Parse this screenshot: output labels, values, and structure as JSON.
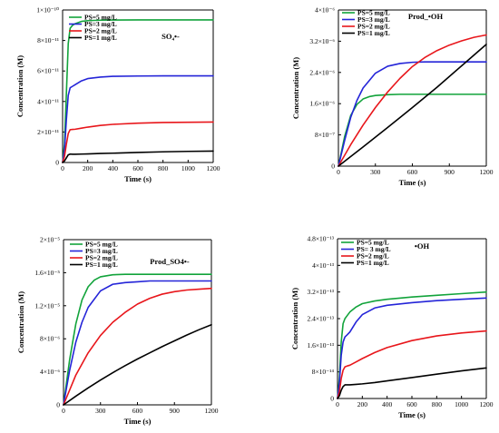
{
  "chart_data": [
    {
      "type": "line",
      "title": "SO₄•-",
      "xlabel": "Time (s)",
      "ylabel": "Concentration (M)",
      "xlim": [
        0,
        1200
      ],
      "ylim": [
        0,
        1e-10
      ],
      "xticks": [
        0,
        200,
        400,
        600,
        800,
        1000,
        1200
      ],
      "xtick_labels": [
        "0",
        "200",
        "400",
        "600",
        "800",
        "1000",
        "1200"
      ],
      "yticks": [
        0,
        2e-11,
        4e-11,
        6e-11,
        8e-11,
        1e-10
      ],
      "ytick_labels": [
        "0",
        "2×10⁻¹¹",
        "4×10⁻¹¹",
        "6×10⁻¹¹",
        "8×10⁻¹¹",
        "1×10⁻¹⁰"
      ],
      "legend": "top-left",
      "series": [
        {
          "name": "PS=5 mg/L",
          "color": "#12a33b",
          "x": [
            0,
            15,
            30,
            45,
            60,
            80,
            100,
            150,
            200,
            300,
            400,
            600,
            800,
            1000,
            1200
          ],
          "values": [
            0,
            1.2e-11,
            4.5e-11,
            7.8e-11,
            8.8e-11,
            9e-11,
            9.1e-11,
            9.25e-11,
            9.3e-11,
            9.33e-11,
            9.34e-11,
            9.35e-11,
            9.35e-11,
            9.35e-11,
            9.35e-11
          ]
        },
        {
          "name": "PS=3 mg/L",
          "color": "#2424d8",
          "x": [
            0,
            15,
            30,
            45,
            60,
            80,
            100,
            150,
            200,
            300,
            400,
            600,
            800,
            1000,
            1200
          ],
          "values": [
            0,
            8e-12,
            2.8e-11,
            4.4e-11,
            4.9e-11,
            5e-11,
            5.1e-11,
            5.35e-11,
            5.5e-11,
            5.6e-11,
            5.65e-11,
            5.67e-11,
            5.68e-11,
            5.68e-11,
            5.68e-11
          ]
        },
        {
          "name": "PS=2 mg/L",
          "color": "#e8161b",
          "x": [
            0,
            15,
            30,
            45,
            60,
            80,
            100,
            150,
            200,
            300,
            400,
            600,
            800,
            1000,
            1200
          ],
          "values": [
            0,
            4e-12,
            1.2e-11,
            1.9e-11,
            2.15e-11,
            2.17e-11,
            2.18e-11,
            2.25e-11,
            2.32e-11,
            2.43e-11,
            2.5e-11,
            2.58e-11,
            2.62e-11,
            2.64e-11,
            2.65e-11
          ]
        },
        {
          "name": "PS=1 mg/L",
          "color": "#000000",
          "x": [
            0,
            15,
            30,
            45,
            60,
            80,
            100,
            150,
            200,
            300,
            400,
            600,
            800,
            1000,
            1200
          ],
          "values": [
            0,
            1e-12,
            3e-12,
            5e-12,
            5.5e-12,
            5.4e-12,
            5.4e-12,
            5.5e-12,
            5.6e-12,
            5.9e-12,
            6.1e-12,
            6.6e-12,
            7e-12,
            7.3e-12,
            7.5e-12
          ]
        }
      ]
    },
    {
      "type": "line",
      "title": "Prod_•OH",
      "xlabel": "Time (s)",
      "ylabel": "Concentration (M)",
      "xlim": [
        0,
        1200
      ],
      "ylim": [
        0,
        4e-06
      ],
      "xticks": [
        0,
        300,
        600,
        900,
        1200
      ],
      "xtick_labels": [
        "0",
        "300",
        "600",
        "900",
        "1200"
      ],
      "yticks": [
        0,
        8e-07,
        1.6e-06,
        2.4e-06,
        3.2e-06,
        4e-06
      ],
      "ytick_labels": [
        "0",
        "8×10⁻⁷",
        "1.6×10⁻⁶",
        "2.4×10⁻⁶",
        "3.2×10⁻⁶",
        "4×10⁻⁶"
      ],
      "legend": "top-left",
      "series": [
        {
          "name": "PS=5 mg/L",
          "color": "#12a33b",
          "x": [
            0,
            50,
            100,
            150,
            200,
            250,
            300,
            400,
            500,
            600,
            800,
            1000,
            1200
          ],
          "values": [
            0,
            7.5e-07,
            1.3e-06,
            1.58e-06,
            1.72e-06,
            1.78e-06,
            1.81e-06,
            1.83e-06,
            1.84e-06,
            1.84e-06,
            1.84e-06,
            1.84e-06,
            1.84e-06
          ]
        },
        {
          "name": "PS=3 mg/L",
          "color": "#2424d8",
          "x": [
            0,
            50,
            100,
            150,
            200,
            300,
            400,
            500,
            600,
            700,
            800,
            1000,
            1200
          ],
          "values": [
            0,
            6.5e-07,
            1.25e-06,
            1.68e-06,
            2e-06,
            2.38e-06,
            2.56e-06,
            2.63e-06,
            2.66e-06,
            2.67e-06,
            2.67e-06,
            2.67e-06,
            2.67e-06
          ]
        },
        {
          "name": "PS=2 mg/L",
          "color": "#e8161b",
          "x": [
            0,
            100,
            200,
            300,
            400,
            500,
            600,
            700,
            800,
            900,
            1000,
            1100,
            1200
          ],
          "values": [
            0,
            5.5e-07,
            1.05e-06,
            1.5e-06,
            1.9e-06,
            2.25e-06,
            2.55e-06,
            2.78e-06,
            2.96e-06,
            3.1e-06,
            3.21e-06,
            3.3e-06,
            3.36e-06
          ]
        },
        {
          "name": "PS=1 mg/L",
          "color": "#000000",
          "x": [
            0,
            200,
            400,
            600,
            800,
            1000,
            1200
          ],
          "values": [
            0,
            4.9e-07,
            9.9e-07,
            1.5e-06,
            2.02e-06,
            2.57e-06,
            3.12e-06
          ]
        }
      ]
    },
    {
      "type": "line",
      "title": "Prod_SO4•-",
      "xlabel": "Time (s)",
      "ylabel": "Concentration (M)",
      "xlim": [
        0,
        1200
      ],
      "ylim": [
        0,
        2e-05
      ],
      "xticks": [
        0,
        300,
        600,
        900,
        1200
      ],
      "xtick_labels": [
        "0",
        "300",
        "600",
        "900",
        "1200"
      ],
      "yticks": [
        0,
        4e-06,
        8e-06,
        1.2e-05,
        1.6e-05,
        2e-05
      ],
      "ytick_labels": [
        "0",
        "4×10⁻⁶",
        "8×10⁻⁶",
        "1.2×10⁻⁵",
        "1.6×10⁻⁵",
        "2×10⁻⁵"
      ],
      "legend": "top-left",
      "series": [
        {
          "name": "PS=5 mg/L",
          "color": "#12a33b",
          "x": [
            0,
            50,
            100,
            150,
            200,
            250,
            300,
            400,
            500,
            600,
            800,
            1000,
            1200
          ],
          "values": [
            0,
            5.5e-06,
            9.8e-06,
            1.27e-05,
            1.43e-05,
            1.51e-05,
            1.55e-05,
            1.575e-05,
            1.58e-05,
            1.58e-05,
            1.58e-05,
            1.58e-05,
            1.58e-05
          ]
        },
        {
          "name": "PS=3 mg/L",
          "color": "#2424d8",
          "x": [
            0,
            50,
            100,
            150,
            200,
            300,
            400,
            500,
            600,
            700,
            800,
            1000,
            1200
          ],
          "values": [
            0,
            4.2e-06,
            7.6e-06,
            1e-05,
            1.18e-05,
            1.38e-05,
            1.46e-05,
            1.48e-05,
            1.49e-05,
            1.5e-05,
            1.5e-05,
            1.5e-05,
            1.5e-05
          ]
        },
        {
          "name": "PS=2 mg/L",
          "color": "#e8161b",
          "x": [
            0,
            100,
            200,
            300,
            400,
            500,
            600,
            700,
            800,
            900,
            1000,
            1100,
            1200
          ],
          "values": [
            0,
            3.6e-06,
            6.3e-06,
            8.4e-06,
            1e-05,
            1.12e-05,
            1.22e-05,
            1.29e-05,
            1.34e-05,
            1.37e-05,
            1.39e-05,
            1.4e-05,
            1.41e-05
          ]
        },
        {
          "name": "PS=1 mg/L",
          "color": "#000000",
          "x": [
            0,
            100,
            200,
            300,
            400,
            500,
            600,
            700,
            800,
            900,
            1000,
            1100,
            1200
          ],
          "values": [
            0,
            1.05e-06,
            2.05e-06,
            3e-06,
            3.9e-06,
            4.75e-06,
            5.55e-06,
            6.3e-06,
            7.05e-06,
            7.75e-06,
            8.45e-06,
            9.1e-06,
            9.7e-06
          ]
        }
      ]
    },
    {
      "type": "line",
      "title": "•OH",
      "xlabel": "Time (s)",
      "ylabel": "Concentration (M)",
      "xlim": [
        0,
        1200
      ],
      "ylim": [
        0,
        4.8e-13
      ],
      "xticks": [
        0,
        200,
        400,
        600,
        800,
        1000,
        1200
      ],
      "xtick_labels": [
        "0",
        "200",
        "400",
        "600",
        "800",
        "1000",
        "1200"
      ],
      "yticks": [
        0,
        8e-14,
        1.6e-13,
        2.4e-13,
        3.2e-13,
        4e-13,
        4.8e-13
      ],
      "ytick_labels": [
        "0",
        "8×10⁻¹⁴",
        "1.6×10⁻¹³",
        "2.4×10⁻¹³",
        "3.2×10⁻¹³",
        "4×10⁻¹³",
        "4.8×10⁻¹³"
      ],
      "legend": "top-left",
      "series": [
        {
          "name": "PS=5 mg/L",
          "color": "#12a33b",
          "x": [
            0,
            15,
            30,
            45,
            60,
            80,
            100,
            150,
            200,
            300,
            400,
            600,
            800,
            1000,
            1200
          ],
          "values": [
            0,
            6e-14,
            1.7e-13,
            2.25e-13,
            2.4e-13,
            2.5e-13,
            2.6e-13,
            2.75e-13,
            2.85e-13,
            2.93e-13,
            2.98e-13,
            3.05e-13,
            3.1e-13,
            3.15e-13,
            3.2e-13
          ]
        },
        {
          "name": "PS= 3 mg/L",
          "color": "#2424d8",
          "x": [
            0,
            15,
            30,
            45,
            60,
            80,
            100,
            150,
            200,
            300,
            400,
            600,
            800,
            1000,
            1200
          ],
          "values": [
            0,
            4.5e-14,
            1.3e-13,
            1.7e-13,
            1.85e-13,
            1.92e-13,
            2e-13,
            2.3e-13,
            2.52e-13,
            2.72e-13,
            2.8e-13,
            2.88e-13,
            2.94e-13,
            2.98e-13,
            3.02e-13
          ]
        },
        {
          "name": "PS=2 mg/L",
          "color": "#e8161b",
          "x": [
            0,
            15,
            30,
            45,
            60,
            80,
            100,
            150,
            200,
            300,
            400,
            600,
            800,
            1000,
            1200
          ],
          "values": [
            0,
            2e-14,
            6e-14,
            8.5e-14,
            9.5e-14,
            9.8e-14,
            1e-13,
            1.1e-13,
            1.2e-13,
            1.38e-13,
            1.53e-13,
            1.74e-13,
            1.88e-13,
            1.97e-13,
            2.03e-13
          ]
        },
        {
          "name": "PS=1 mg/L",
          "color": "#000000",
          "x": [
            0,
            15,
            30,
            45,
            60,
            80,
            100,
            150,
            200,
            300,
            400,
            600,
            800,
            1000,
            1200
          ],
          "values": [
            0,
            8e-15,
            2.5e-14,
            3.6e-14,
            4.1e-14,
            4.1e-14,
            4.1e-14,
            4.25e-14,
            4.4e-14,
            4.8e-14,
            5.3e-14,
            6.3e-14,
            7.3e-14,
            8.3e-14,
            9.2e-14
          ]
        }
      ]
    }
  ]
}
